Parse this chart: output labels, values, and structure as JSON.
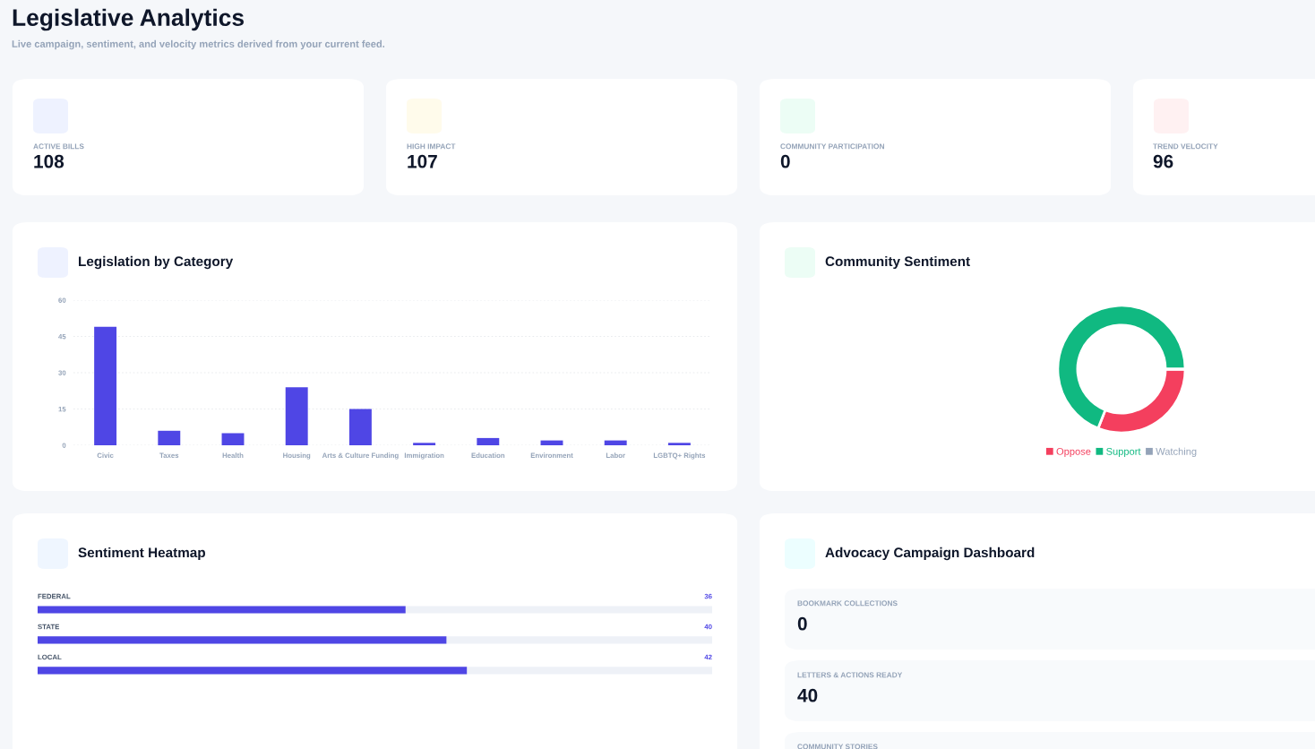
{
  "chart_data": [
    {
      "type": "other",
      "title": "Legislative Analytics",
      "subtitle": "Live campaign, sentiment, and velocity metrics derived from your current feed.",
      "categories": [
        "ACTIVE BILLS",
        "HIGH IMPACT",
        "COMMUNITY PARTICIPATION",
        "TREND VELOCITY"
      ],
      "values": [
        108,
        107,
        0,
        96
      ],
      "data_labels": true
    },
    {
      "type": "bar",
      "title": "Legislation by Category",
      "categories": [
        "Civic",
        "Taxes",
        "Health",
        "Housing",
        "Arts & Culture Funding",
        "Immigration",
        "Education",
        "Environment",
        "Labor",
        "LGBTQ+ Rights"
      ],
      "values": [
        49,
        6,
        5,
        24,
        15,
        1,
        3,
        2,
        2,
        1
      ],
      "color": "#4f46e5",
      "ylim": [
        0,
        60
      ],
      "yticks": [
        0,
        15,
        30,
        45,
        60
      ],
      "grid": "y"
    },
    {
      "type": "donut",
      "title": "Community Sentiment",
      "categories": [
        "Oppose",
        "Support",
        "Watching"
      ],
      "values": [
        31,
        69,
        0
      ],
      "colors": [
        "#f43f5e",
        "#10b981",
        "#94a3b8"
      ],
      "legend": "bottom"
    },
    {
      "type": "bar",
      "orientation": "horizontal",
      "title": "Sentiment Heatmap",
      "categories": [
        "FEDERAL",
        "STATE",
        "LOCAL"
      ],
      "values": [
        36,
        40,
        42
      ],
      "color": "#4f46e5",
      "xlim": [
        0,
        66
      ],
      "data_labels": true
    },
    {
      "type": "other",
      "title": "Advocacy Campaign Dashboard",
      "categories": [
        "BOOKMARK COLLECTIONS",
        "LETTERS & ACTIONS READY",
        "COMMUNITY STORIES"
      ],
      "values": [
        0,
        40,
        null
      ],
      "data_labels": true
    }
  ]
}
